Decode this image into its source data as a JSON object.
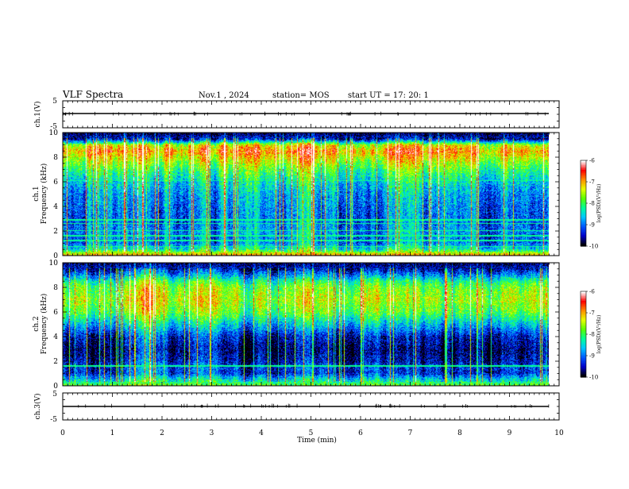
{
  "header": {
    "title": "VLF Spectra",
    "date": "Nov.1 , 2024",
    "station": "station= MOS",
    "start": "start UT = 17: 20: 1"
  },
  "chart_data": {
    "type": "heatmap",
    "x": {
      "label": "Time (min)",
      "range": [
        0,
        10
      ],
      "ticks": [
        "0",
        "1",
        "2",
        "3",
        "4",
        "5",
        "6",
        "7",
        "8",
        "9",
        "10"
      ],
      "data_end": 9.8
    },
    "panels": [
      {
        "id": "ch1_volt",
        "label": "ch.1(V)",
        "ylim": [
          -5,
          5
        ],
        "ticks": [
          "5",
          "-5"
        ]
      },
      {
        "id": "ch1_spec",
        "label_top": "ch.1",
        "label": "Frequency (kHz)",
        "ylim": [
          0,
          10
        ],
        "ticks": [
          "0",
          "2",
          "4",
          "6",
          "8",
          "10"
        ],
        "band_profile": {
          "freq_khz": [
            0,
            0.5,
            1,
            1.5,
            2,
            3,
            4,
            5,
            6,
            7,
            8,
            8.5,
            9,
            9.5,
            10
          ],
          "level": [
            0.75,
            0.45,
            0.3,
            0.3,
            0.32,
            0.28,
            0.3,
            0.34,
            0.42,
            0.55,
            0.72,
            0.82,
            0.7,
            0.15,
            0.05
          ]
        },
        "lines_khz": [
          0.7,
          1.2,
          1.6,
          2.0,
          2.6,
          2.9,
          6.1
        ]
      },
      {
        "id": "ch2_spec",
        "label_top": "ch.2",
        "label": "Frequency (kHz)",
        "ylim": [
          0,
          10
        ],
        "ticks": [
          "0",
          "2",
          "4",
          "6",
          "8",
          "10"
        ],
        "band_profile": {
          "freq_khz": [
            0,
            0.5,
            1,
            1.5,
            2,
            3,
            4,
            5,
            6,
            7,
            8,
            8.5,
            9,
            9.5,
            10
          ],
          "level": [
            0.55,
            0.4,
            0.2,
            0.22,
            0.15,
            0.1,
            0.18,
            0.38,
            0.58,
            0.66,
            0.6,
            0.5,
            0.32,
            0.15,
            0.06
          ]
        },
        "lines_khz": [
          1.6
        ]
      },
      {
        "id": "ch3_volt",
        "label": "ch.3(V)",
        "ylim": [
          -5,
          5
        ],
        "ticks": [
          "5",
          "-5"
        ]
      }
    ],
    "colorbar": {
      "label": "log(PSD)(V²/Hz)",
      "range": [
        -10,
        -6
      ],
      "ticks": [
        "-6",
        "-7",
        "-8",
        "-9",
        "-10"
      ],
      "colors": [
        "#000000",
        "#0000c8",
        "#0058ff",
        "#00c8ff",
        "#00ff9a",
        "#5aff00",
        "#e6ff00",
        "#ff9000",
        "#ff0000",
        "#ffffff"
      ]
    }
  }
}
